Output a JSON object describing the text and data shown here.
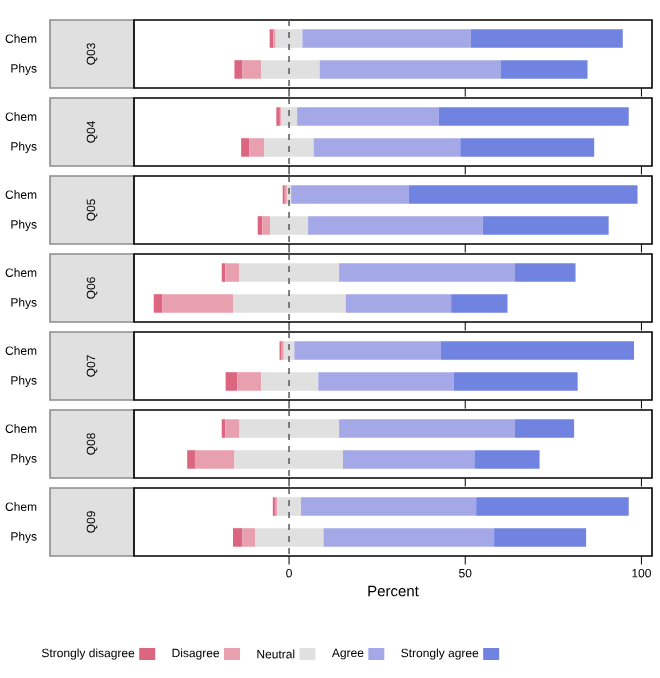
{
  "chart_data": [
    {
      "type": "bar",
      "orientation": "horizontal",
      "title": "Q03",
      "categories": [
        "Chem",
        "Phys"
      ],
      "xlim": [
        -44,
        103
      ],
      "xticks": [
        0,
        50,
        100
      ],
      "tick_labels": "y",
      "ref_lines": [
        {
          "axis": "x",
          "value": 0,
          "line_style": "dashed"
        }
      ],
      "series": [
        {
          "color": "#dc6680",
          "base": [
            -5.5,
            -15.5
          ],
          "values": [
            1.0,
            2.3
          ]
        },
        {
          "color": "#e8a0ae",
          "base": [
            -4.5,
            -13.2
          ],
          "values": [
            0.7,
            5.3
          ]
        },
        {
          "color": "#e0e0e0",
          "base": [
            -3.8,
            -7.9
          ],
          "values": [
            7.6,
            16.6
          ]
        },
        {
          "color": "#a4a8e6",
          "base": [
            3.8,
            8.7
          ],
          "values": [
            47.8,
            51.4
          ]
        },
        {
          "color": "#7083e0",
          "base": [
            51.6,
            60.1
          ],
          "values": [
            43.1,
            24.6
          ]
        }
      ]
    },
    {
      "type": "bar",
      "orientation": "horizontal",
      "title": "Q04",
      "categories": [
        "Chem",
        "Phys"
      ],
      "xlim": [
        -44,
        103
      ],
      "xticks": [
        0,
        50,
        100
      ],
      "tick_labels": "y",
      "ref_lines": [
        {
          "axis": "x",
          "value": 0,
          "line_style": "dashed"
        }
      ],
      "series": [
        {
          "color": "#dc6680",
          "base": [
            -3.6,
            -13.6
          ],
          "values": [
            1.0,
            2.3
          ]
        },
        {
          "color": "#e8a0ae",
          "base": [
            -2.6,
            -11.3
          ],
          "values": [
            0.3,
            4.3
          ]
        },
        {
          "color": "#e0e0e0",
          "base": [
            -2.3,
            -7.0
          ],
          "values": [
            4.6,
            14.0
          ]
        },
        {
          "color": "#a4a8e6",
          "base": [
            2.3,
            7.0
          ],
          "values": [
            40.2,
            41.6
          ]
        },
        {
          "color": "#7083e0",
          "base": [
            42.5,
            48.6
          ],
          "values": [
            53.9,
            38.0
          ]
        }
      ]
    },
    {
      "type": "bar",
      "orientation": "horizontal",
      "title": "Q05",
      "categories": [
        "Chem",
        "Phys"
      ],
      "xlim": [
        -44,
        103
      ],
      "xticks": [
        0,
        50,
        100
      ],
      "tick_labels": "y",
      "ref_lines": [
        {
          "axis": "x",
          "value": 0,
          "line_style": "dashed"
        }
      ],
      "series": [
        {
          "color": "#dc6680",
          "base": [
            -1.8,
            -8.9
          ],
          "values": [
            0.6,
            1.3
          ]
        },
        {
          "color": "#e8a0ae",
          "base": [
            -1.2,
            -7.6
          ],
          "values": [
            0.6,
            2.2
          ]
        },
        {
          "color": "#e0e0e0",
          "base": [
            -0.6,
            -5.4
          ],
          "values": [
            1.2,
            10.8
          ]
        },
        {
          "color": "#a4a8e6",
          "base": [
            0.6,
            5.4
          ],
          "values": [
            33.4,
            49.6
          ]
        },
        {
          "color": "#7083e0",
          "base": [
            34.0,
            55.0
          ],
          "values": [
            64.9,
            35.7
          ]
        }
      ]
    },
    {
      "type": "bar",
      "orientation": "horizontal",
      "title": "Q06",
      "categories": [
        "Chem",
        "Phys"
      ],
      "xlim": [
        -44,
        103
      ],
      "xticks": [
        0,
        50,
        100
      ],
      "tick_labels": "y",
      "ref_lines": [
        {
          "axis": "x",
          "value": 0,
          "line_style": "dashed"
        }
      ],
      "series": [
        {
          "color": "#dc6680",
          "base": [
            -19.1,
            -38.4
          ],
          "values": [
            1.0,
            2.5
          ]
        },
        {
          "color": "#e8a0ae",
          "base": [
            -18.1,
            -35.9
          ],
          "values": [
            3.9,
            20.0
          ]
        },
        {
          "color": "#e0e0e0",
          "base": [
            -14.2,
            -15.9
          ],
          "values": [
            28.4,
            32.0
          ]
        },
        {
          "color": "#a4a8e6",
          "base": [
            14.2,
            16.1
          ],
          "values": [
            49.9,
            29.9
          ]
        },
        {
          "color": "#7083e0",
          "base": [
            64.1,
            46.0
          ],
          "values": [
            17.2,
            16.0
          ]
        }
      ]
    },
    {
      "type": "bar",
      "orientation": "horizontal",
      "title": "Q07",
      "categories": [
        "Chem",
        "Phys"
      ],
      "xlim": [
        -44,
        103
      ],
      "xticks": [
        0,
        50,
        100
      ],
      "tick_labels": "y",
      "ref_lines": [
        {
          "axis": "x",
          "value": 0,
          "line_style": "dashed"
        }
      ],
      "series": [
        {
          "color": "#dc6680",
          "base": [
            -2.7,
            -18.0
          ],
          "values": [
            0.6,
            3.3
          ]
        },
        {
          "color": "#e8a0ae",
          "base": [
            -2.1,
            -14.7
          ],
          "values": [
            0.6,
            6.8
          ]
        },
        {
          "color": "#e0e0e0",
          "base": [
            -1.5,
            -7.9
          ],
          "values": [
            3.0,
            16.2
          ]
        },
        {
          "color": "#a4a8e6",
          "base": [
            1.5,
            8.3
          ],
          "values": [
            41.6,
            38.4
          ]
        },
        {
          "color": "#7083e0",
          "base": [
            43.1,
            46.7
          ],
          "values": [
            54.8,
            35.2
          ]
        }
      ]
    },
    {
      "type": "bar",
      "orientation": "horizontal",
      "title": "Q08",
      "categories": [
        "Chem",
        "Phys"
      ],
      "xlim": [
        -44,
        103
      ],
      "xticks": [
        0,
        50,
        100
      ],
      "tick_labels": "y",
      "ref_lines": [
        {
          "axis": "x",
          "value": 0,
          "line_style": "dashed"
        }
      ],
      "series": [
        {
          "color": "#dc6680",
          "base": [
            -19.1,
            -28.9
          ],
          "values": [
            1.0,
            2.2
          ]
        },
        {
          "color": "#e8a0ae",
          "base": [
            -18.1,
            -26.7
          ],
          "values": [
            3.9,
            11.2
          ]
        },
        {
          "color": "#e0e0e0",
          "base": [
            -14.2,
            -15.5
          ],
          "values": [
            28.4,
            30.8
          ]
        },
        {
          "color": "#a4a8e6",
          "base": [
            14.2,
            15.3
          ],
          "values": [
            49.9,
            37.3
          ]
        },
        {
          "color": "#7083e0",
          "base": [
            64.1,
            52.6
          ],
          "values": [
            16.8,
            18.5
          ]
        }
      ]
    },
    {
      "type": "bar",
      "orientation": "horizontal",
      "title": "Q09",
      "categories": [
        "Chem",
        "Phys"
      ],
      "xlim": [
        -44,
        103
      ],
      "xticks": [
        0,
        50,
        100
      ],
      "xlabel": "Percent",
      "legend": "bottom",
      "ref_lines": [
        {
          "axis": "x",
          "value": 0,
          "line_style": "dashed"
        }
      ],
      "series": [
        {
          "name": "Strongly disagree",
          "color": "#dc6680",
          "base": [
            -4.6,
            -15.9
          ],
          "values": [
            0.6,
            2.7
          ]
        },
        {
          "name": "Disagree",
          "color": "#e8a0ae",
          "base": [
            -4.0,
            -13.2
          ],
          "values": [
            0.6,
            3.6
          ]
        },
        {
          "name": "Neutral",
          "color": "#e0e0e0",
          "base": [
            -3.4,
            -9.6
          ],
          "values": [
            6.8,
            19.4
          ]
        },
        {
          "name": "Agree",
          "color": "#a4a8e6",
          "base": [
            3.4,
            9.8
          ],
          "values": [
            49.7,
            48.4
          ]
        },
        {
          "name": "Strongly agree",
          "color": "#7083e0",
          "base": [
            53.1,
            58.2
          ],
          "values": [
            43.3,
            26.1
          ]
        }
      ]
    }
  ]
}
